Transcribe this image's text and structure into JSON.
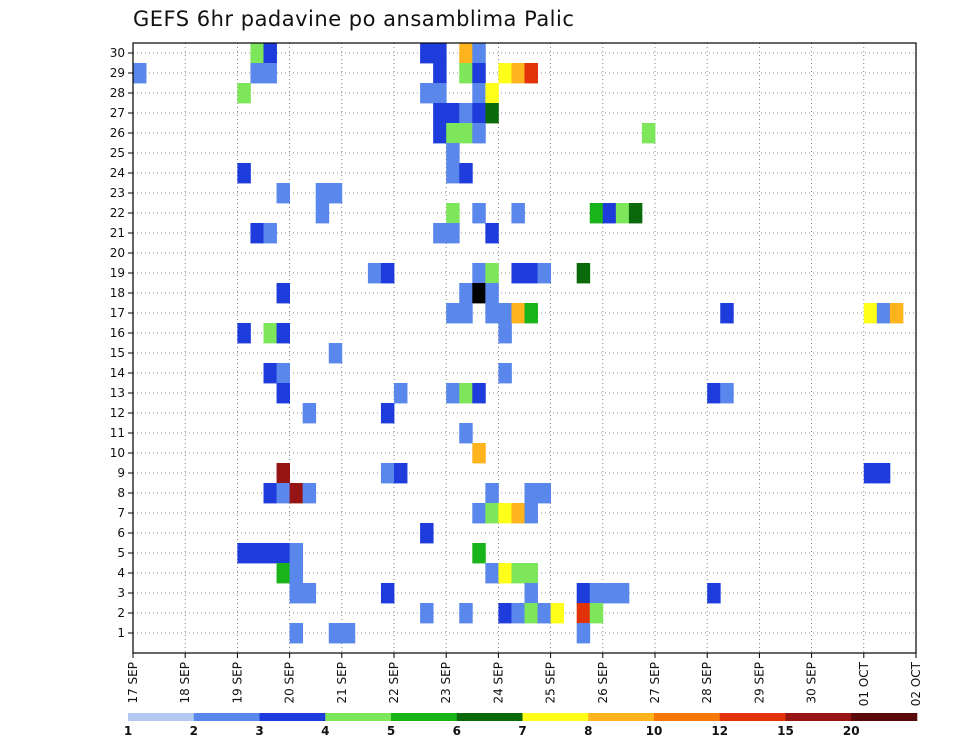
{
  "chart_data": {
    "type": "heatmap",
    "title": "GEFS 6hr padavine po ansamblima Palic",
    "xlabel": "",
    "ylabel": "",
    "x_tick_labels": [
      "17 SEP",
      "18 SEP",
      "19 SEP",
      "20 SEP",
      "21 SEP",
      "22 SEP",
      "23 SEP",
      "24 SEP",
      "25 SEP",
      "26 SEP",
      "27 SEP",
      "28 SEP",
      "29 SEP",
      "30 SEP",
      "01 OCT",
      "02 OCT"
    ],
    "y_tick_labels": [
      "1",
      "2",
      "3",
      "4",
      "5",
      "6",
      "7",
      "8",
      "9",
      "10",
      "11",
      "12",
      "13",
      "14",
      "15",
      "16",
      "17",
      "18",
      "19",
      "20",
      "21",
      "22",
      "23",
      "24",
      "25",
      "26",
      "27",
      "28",
      "29",
      "30"
    ],
    "xlim_steps": [
      0,
      60
    ],
    "ylim": [
      0,
      30
    ],
    "grid": true,
    "color_scale": {
      "thresholds": [
        "1",
        "2",
        "3",
        "4",
        "5",
        "6",
        "7",
        "8",
        "10",
        "12",
        "15",
        "20"
      ],
      "colors": [
        "#b4c8f2",
        "#5a87eb",
        "#1e3cdc",
        "#7ee65a",
        "#19b419",
        "#0a690a",
        "#ffff19",
        "#ffb41e",
        "#fa780a",
        "#e1320a",
        "#961414",
        "#5a0a0a"
      ]
    },
    "cell_resolution": "6 hr steps x ensemble member",
    "cells": [
      [
        9,
        30,
        3
      ],
      [
        10,
        30,
        2
      ],
      [
        22,
        30,
        2
      ],
      [
        23,
        30,
        2
      ],
      [
        25,
        30,
        7
      ],
      [
        26,
        30,
        1
      ],
      [
        0,
        29,
        1
      ],
      [
        9,
        29,
        1
      ],
      [
        10,
        29,
        1
      ],
      [
        23,
        29,
        2
      ],
      [
        25,
        29,
        3
      ],
      [
        26,
        29,
        2
      ],
      [
        28,
        29,
        6
      ],
      [
        29,
        29,
        7
      ],
      [
        30,
        29,
        9
      ],
      [
        8,
        28,
        3
      ],
      [
        22,
        28,
        1
      ],
      [
        23,
        28,
        1
      ],
      [
        26,
        28,
        1
      ],
      [
        27,
        28,
        6
      ],
      [
        23,
        27,
        2
      ],
      [
        24,
        27,
        2
      ],
      [
        25,
        27,
        1
      ],
      [
        26,
        27,
        2
      ],
      [
        27,
        27,
        5
      ],
      [
        23,
        26,
        2
      ],
      [
        24,
        26,
        3
      ],
      [
        25,
        26,
        3
      ],
      [
        26,
        26,
        1
      ],
      [
        39,
        26,
        3
      ],
      [
        24,
        25,
        1
      ],
      [
        24,
        24,
        1
      ],
      [
        25,
        24,
        2
      ],
      [
        8,
        24,
        2
      ],
      [
        11,
        23,
        1
      ],
      [
        14,
        23,
        1
      ],
      [
        15,
        23,
        1
      ],
      [
        14,
        22,
        1
      ],
      [
        24,
        22,
        3
      ],
      [
        26,
        22,
        1
      ],
      [
        29,
        22,
        1
      ],
      [
        35,
        22,
        4
      ],
      [
        36,
        22,
        2
      ],
      [
        37,
        22,
        3
      ],
      [
        38,
        22,
        5
      ],
      [
        9,
        21,
        2
      ],
      [
        10,
        21,
        1
      ],
      [
        23,
        21,
        1
      ],
      [
        24,
        21,
        1
      ],
      [
        27,
        21,
        2
      ],
      [
        18,
        19,
        1
      ],
      [
        19,
        19,
        2
      ],
      [
        26,
        19,
        1
      ],
      [
        27,
        19,
        3
      ],
      [
        29,
        19,
        2
      ],
      [
        30,
        19,
        2
      ],
      [
        31,
        19,
        1
      ],
      [
        34,
        19,
        5
      ],
      [
        11,
        18,
        2
      ],
      [
        25,
        18,
        1
      ],
      [
        26,
        18,
        12
      ],
      [
        27,
        18,
        1
      ],
      [
        24,
        17,
        1
      ],
      [
        25,
        17,
        1
      ],
      [
        27,
        17,
        1
      ],
      [
        28,
        17,
        1
      ],
      [
        29,
        17,
        7
      ],
      [
        30,
        17,
        4
      ],
      [
        45,
        17,
        2
      ],
      [
        56,
        17,
        6
      ],
      [
        57,
        17,
        1
      ],
      [
        58,
        17,
        7
      ],
      [
        8,
        16,
        2
      ],
      [
        10,
        16,
        3
      ],
      [
        11,
        16,
        2
      ],
      [
        28,
        16,
        1
      ],
      [
        15,
        15,
        1
      ],
      [
        10,
        14,
        2
      ],
      [
        11,
        14,
        1
      ],
      [
        28,
        14,
        1
      ],
      [
        11,
        13,
        2
      ],
      [
        20,
        13,
        1
      ],
      [
        24,
        13,
        1
      ],
      [
        25,
        13,
        3
      ],
      [
        26,
        13,
        2
      ],
      [
        44,
        13,
        2
      ],
      [
        45,
        13,
        1
      ],
      [
        13,
        12,
        1
      ],
      [
        19,
        12,
        2
      ],
      [
        25,
        11,
        1
      ],
      [
        26,
        10,
        7
      ],
      [
        11,
        9,
        10
      ],
      [
        19,
        9,
        1
      ],
      [
        20,
        9,
        2
      ],
      [
        56,
        9,
        2
      ],
      [
        57,
        9,
        2
      ],
      [
        10,
        8,
        2
      ],
      [
        11,
        8,
        1
      ],
      [
        12,
        8,
        10
      ],
      [
        13,
        8,
        1
      ],
      [
        27,
        8,
        1
      ],
      [
        30,
        8,
        1
      ],
      [
        31,
        8,
        1
      ],
      [
        26,
        7,
        1
      ],
      [
        27,
        7,
        3
      ],
      [
        28,
        7,
        6
      ],
      [
        29,
        7,
        7
      ],
      [
        30,
        7,
        1
      ],
      [
        22,
        6,
        2
      ],
      [
        8,
        5,
        2
      ],
      [
        9,
        5,
        2
      ],
      [
        10,
        5,
        2
      ],
      [
        11,
        5,
        2
      ],
      [
        12,
        5,
        1
      ],
      [
        26,
        5,
        4
      ],
      [
        11,
        4,
        4
      ],
      [
        12,
        4,
        1
      ],
      [
        27,
        4,
        1
      ],
      [
        28,
        4,
        6
      ],
      [
        29,
        4,
        3
      ],
      [
        30,
        4,
        3
      ],
      [
        12,
        3,
        1
      ],
      [
        13,
        3,
        1
      ],
      [
        19,
        3,
        2
      ],
      [
        30,
        3,
        1
      ],
      [
        34,
        3,
        2
      ],
      [
        35,
        3,
        1
      ],
      [
        36,
        3,
        1
      ],
      [
        37,
        3,
        1
      ],
      [
        44,
        3,
        2
      ],
      [
        22,
        2,
        1
      ],
      [
        25,
        2,
        1
      ],
      [
        28,
        2,
        2
      ],
      [
        29,
        2,
        1
      ],
      [
        30,
        2,
        3
      ],
      [
        31,
        2,
        1
      ],
      [
        32,
        2,
        6
      ],
      [
        34,
        2,
        9
      ],
      [
        35,
        2,
        3
      ],
      [
        12,
        1,
        1
      ],
      [
        15,
        1,
        1
      ],
      [
        16,
        1,
        1
      ],
      [
        34,
        1,
        1
      ]
    ]
  }
}
